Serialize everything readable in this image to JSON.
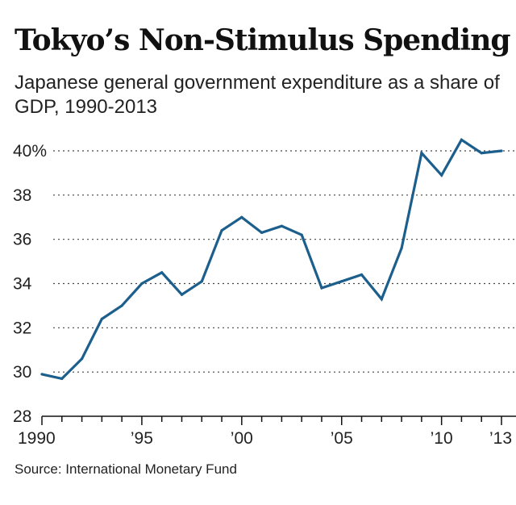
{
  "title": "Tokyo’s Non-Stimulus Spending",
  "subtitle": "Japanese general government expenditure as a share of GDP, 1990-2013",
  "source": "Source: International Monetary Fund",
  "colors": {
    "line": "#1c5f8c",
    "grid": "#444444",
    "text": "#222222"
  },
  "chart_data": {
    "type": "line",
    "title": "Tokyo’s Non-Stimulus Spending",
    "subtitle": "Japanese general government expenditure as a share of GDP, 1990-2013",
    "xlabel": "",
    "ylabel": "",
    "x": [
      1990,
      1991,
      1992,
      1993,
      1994,
      1995,
      1996,
      1997,
      1998,
      1999,
      2000,
      2001,
      2002,
      2003,
      2004,
      2005,
      2006,
      2007,
      2008,
      2009,
      2010,
      2011,
      2012,
      2013
    ],
    "series": [
      {
        "name": "General government expenditure (% of GDP)",
        "values": [
          29.9,
          29.7,
          30.6,
          32.4,
          33.0,
          34.0,
          34.5,
          33.5,
          34.1,
          36.4,
          37.0,
          36.3,
          36.6,
          36.2,
          33.8,
          34.1,
          34.4,
          33.3,
          35.6,
          39.9,
          38.9,
          40.5,
          39.9,
          40.0
        ]
      }
    ],
    "xlim": [
      1990,
      2013
    ],
    "ylim": [
      28,
      40
    ],
    "yticks": [
      28,
      30,
      32,
      34,
      36,
      38,
      40
    ],
    "ytick_labels": [
      "28",
      "30",
      "32",
      "34",
      "36",
      "38",
      "40%"
    ],
    "xticks": [
      1990,
      1995,
      2000,
      2005,
      2010,
      2013
    ],
    "xtick_labels": [
      "1990",
      "’95",
      "’00",
      "’05",
      "’10",
      "’13"
    ],
    "grid": true,
    "legend": "none"
  }
}
